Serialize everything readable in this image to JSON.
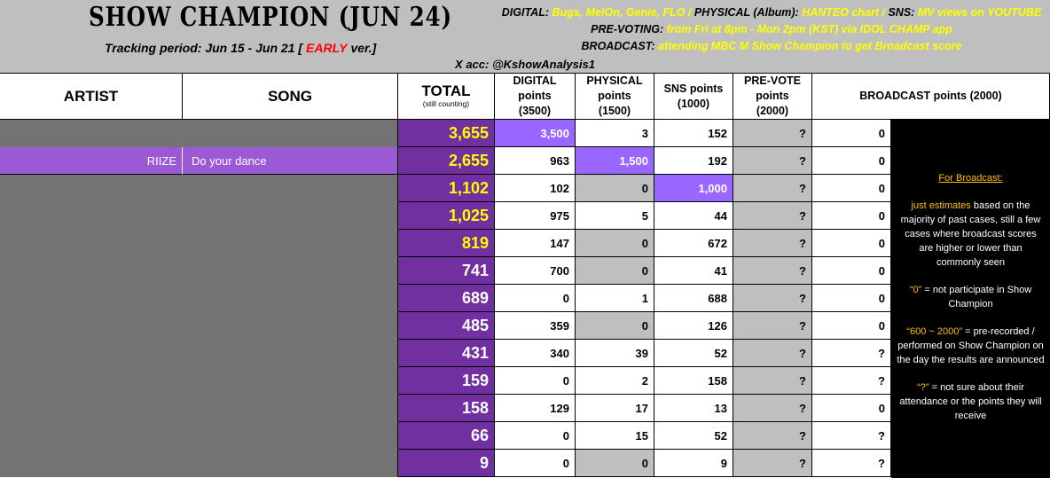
{
  "header": {
    "title": "SHOW CHAMPION (JUN 24)",
    "tracking": [
      "Tracking period: Jun 15 - Jun 21 [",
      "EARLY",
      "ver.]"
    ],
    "info": [
      [
        "DIGITAL:",
        " Bugs, MelOn, Genie, FLO /",
        " PHYSICAL (Album):",
        " HANTEO chart /",
        " SNS:",
        " MV views on YOUTUBE"
      ],
      [
        "PRE-VOTING:",
        " from Fri at 8pm - Mon 2pm (KST) via IDOL CHAMP app"
      ],
      [
        "BROADCAST:",
        " attending MBC M Show Champion to get Broadcast score"
      ]
    ],
    "account": "X acc: @KshowAnalysis1"
  },
  "table": {
    "columns": [
      "ARTIST",
      "SONG",
      "TOTAL",
      "DIGITAL points (3500)",
      "PHYSICAL points (1500)",
      "SNS points (1000)",
      "PRE-VOTE points (2000)",
      "BROADCAST points (2000)"
    ],
    "total_note": "(still counting)",
    "rows": [
      [
        null,
        null,
        "3,655",
        "3,500",
        "3",
        "152",
        "?",
        "0"
      ],
      [
        "RIIZE",
        "Do your dance",
        "2,655",
        "963",
        "1,500",
        "192",
        "?",
        "0"
      ],
      [
        null,
        null,
        "1,102",
        "102",
        "0",
        "1,000",
        "?",
        "0"
      ],
      [
        null,
        null,
        "1,025",
        "975",
        "5",
        "44",
        "?",
        "0"
      ],
      [
        null,
        null,
        "819",
        "147",
        "0",
        "672",
        "?",
        "0"
      ],
      [
        null,
        null,
        "741",
        "700",
        "0",
        "41",
        "?",
        "0"
      ],
      [
        null,
        null,
        "689",
        "0",
        "1",
        "688",
        "?",
        "0"
      ],
      [
        null,
        null,
        "485",
        "359",
        "0",
        "126",
        "?",
        "0"
      ],
      [
        null,
        null,
        "431",
        "340",
        "39",
        "52",
        "?",
        "?"
      ],
      [
        null,
        null,
        "159",
        "0",
        "2",
        "158",
        "?",
        "?"
      ],
      [
        null,
        null,
        "158",
        "129",
        "17",
        "13",
        "?",
        "0"
      ],
      [
        null,
        null,
        "66",
        "0",
        "15",
        "52",
        "?",
        "?"
      ],
      [
        null,
        null,
        "9",
        "0",
        "0",
        "9",
        "?",
        "?"
      ]
    ]
  },
  "notes": [
    [
      "For Broadcast:"
    ],
    [
      "just estimates",
      " based on the majority of past cases, still a few cases where broadcast scores are higher or lower than commonly seen"
    ],
    [
      "“0”",
      " = not participate in Show Champion"
    ],
    [
      "“600 ~ 2000”",
      " = pre-recorded / performed on Show Champion on the day the results are announced"
    ],
    [
      "“?”",
      " = not sure about their attendance or the points they will receive"
    ]
  ]
}
